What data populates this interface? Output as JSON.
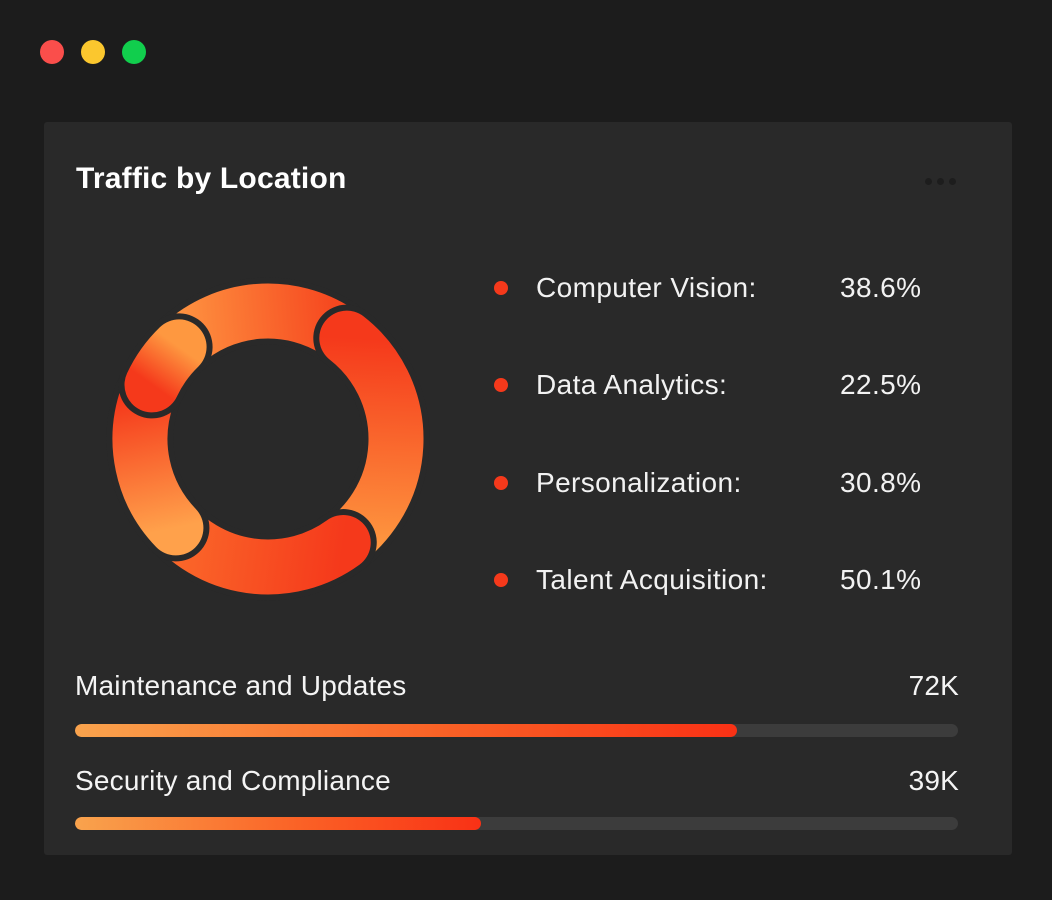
{
  "window": {
    "traffic_lights": [
      {
        "name": "close",
        "color": "#FA4E4B"
      },
      {
        "name": "minimize",
        "color": "#FBC72E"
      },
      {
        "name": "zoom",
        "color": "#11CE4D"
      }
    ]
  },
  "card": {
    "title": "Traffic by Location",
    "menu": {
      "icon": "ellipsis-icon"
    },
    "legend": {
      "items": [
        {
          "label": "Computer Vision:",
          "value": "38.6%"
        },
        {
          "label": "Data Analytics:",
          "value": "22.5%"
        },
        {
          "label": "Personalization:",
          "value": "30.8%"
        },
        {
          "label": "Talent Acquisition:",
          "value": "50.1%"
        }
      ]
    },
    "bars": {
      "items": [
        {
          "label": "Maintenance and Updates",
          "value": "72K"
        },
        {
          "label": "Security and Compliance",
          "value": "39K"
        }
      ]
    }
  },
  "colors": {
    "page_bg": "#1C1C1C",
    "card_bg": "#292929",
    "accent_red": "#F5391B",
    "accent_orange": "#FFA14B",
    "bullet": "#F5391B",
    "track": "#3C3C3C",
    "text": "#F2F2F2"
  },
  "chart_data": [
    {
      "type": "pie",
      "variant": "donut",
      "title": "Traffic by Location",
      "legend_position": "right",
      "labels": [
        "Computer Vision",
        "Data Analytics",
        "Personalization",
        "Talent Acquisition"
      ],
      "values": [
        38.6,
        22.5,
        30.8,
        50.1
      ],
      "unit": "%",
      "segments": [
        {
          "start": 318,
          "end": 33,
          "from": "#FE9240",
          "to": "#F6471F"
        },
        {
          "start": 38,
          "end": 148,
          "from": "#F5391B",
          "to": "#FE9840"
        },
        {
          "start": 144,
          "end": 232,
          "from": "#F5391B",
          "to": "#FB6B2B"
        },
        {
          "start": 226,
          "end": 290,
          "from": "#FFA14B",
          "to": "#F5391B"
        },
        {
          "start": 295,
          "end": 316,
          "from": "#F5391B",
          "to": "#FE9840"
        }
      ]
    },
    {
      "type": "bar",
      "variant": "progress",
      "items": [
        {
          "label": "Maintenance and Updates",
          "value_label": "72K",
          "value": 72,
          "fill_pct": 75
        },
        {
          "label": "Security and Compliance",
          "value_label": "39K",
          "value": 39,
          "fill_pct": 46
        }
      ]
    }
  ]
}
